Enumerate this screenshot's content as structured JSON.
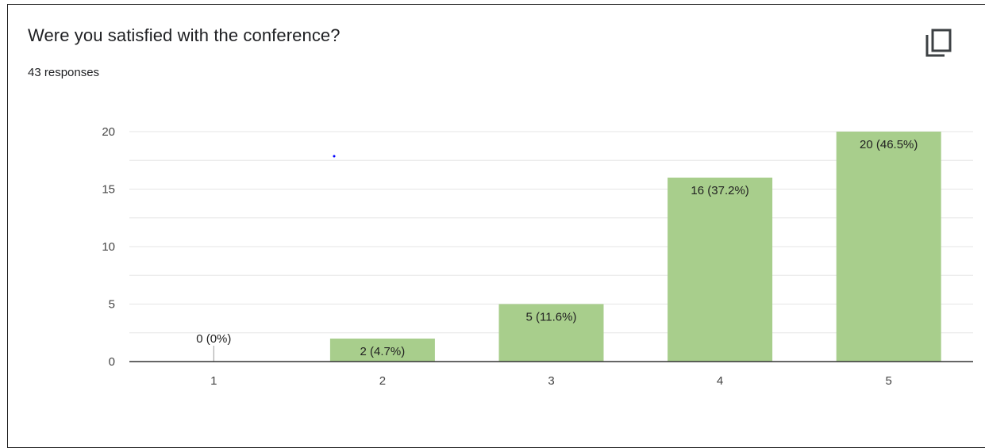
{
  "question": {
    "title": "Were you satisfied with the conference?",
    "responses": "43 responses"
  },
  "copy_button": {
    "icon": "copy-icon"
  },
  "colors": {
    "bar": "#a8ce8c",
    "gridline": "#e6e6e6",
    "baseline": "#333333",
    "stray_dot": "#0000ff"
  },
  "chart_data": {
    "type": "bar",
    "title": "Were you satisfied with the conference?",
    "xlabel": "",
    "ylabel": "",
    "categories": [
      "1",
      "2",
      "3",
      "4",
      "5"
    ],
    "values": [
      0,
      2,
      5,
      16,
      20
    ],
    "data_labels": [
      "0 (0%)",
      "2 (4.7%)",
      "5 (11.6%)",
      "16 (37.2%)",
      "20 (46.5%)"
    ],
    "ylim": [
      0,
      20
    ],
    "yticks": [
      0,
      5,
      10,
      15,
      20
    ],
    "minor_gridlines": true,
    "legend": "none"
  }
}
